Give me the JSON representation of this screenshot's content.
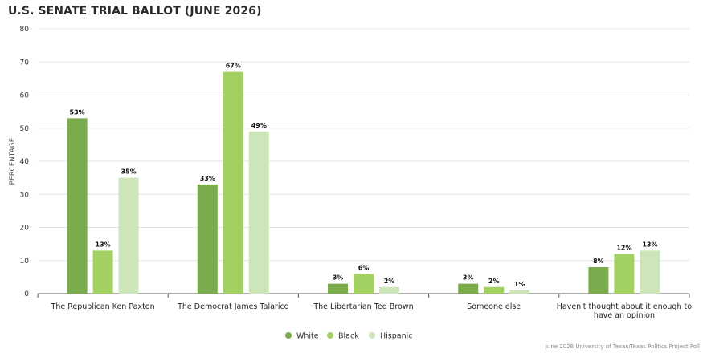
{
  "colors": {
    "White": "#7aab4c",
    "Black": "#a3d063",
    "Hispanic": "#cde6b9",
    "grid": "#e4e4e4",
    "axis": "#555555"
  },
  "chart_data": {
    "type": "bar",
    "title": "U.S. SENATE TRIAL BALLOT (JUNE 2026)",
    "ylabel": "PERCENTAGE",
    "xlabel": "",
    "ylim": [
      0,
      80
    ],
    "yticks": [
      "0",
      "10",
      "20",
      "30",
      "40",
      "50",
      "60",
      "70",
      "80"
    ],
    "grid": true,
    "legend": "bottom-center",
    "categories": [
      [
        "The Republican Ken Paxton"
      ],
      [
        "The Democrat James Talarico"
      ],
      [
        "The Libertarian Ted Brown"
      ],
      [
        "Someone else"
      ],
      [
        "Haven't thought about it enough to",
        "have an opinion"
      ]
    ],
    "series": [
      {
        "name": "White",
        "values": [
          53,
          33,
          3,
          3,
          8
        ],
        "labels": [
          "53%",
          "33%",
          "3%",
          "3%",
          "8%"
        ]
      },
      {
        "name": "Black",
        "values": [
          13,
          67,
          6,
          2,
          12
        ],
        "labels": [
          "13%",
          "67%",
          "6%",
          "2%",
          "12%"
        ]
      },
      {
        "name": "Hispanic",
        "values": [
          35,
          49,
          2,
          1,
          13
        ],
        "labels": [
          "35%",
          "49%",
          "2%",
          "1%",
          "13%"
        ]
      }
    ]
  },
  "source": "June 2026 University of Texas/Texas Politics Project Poll"
}
